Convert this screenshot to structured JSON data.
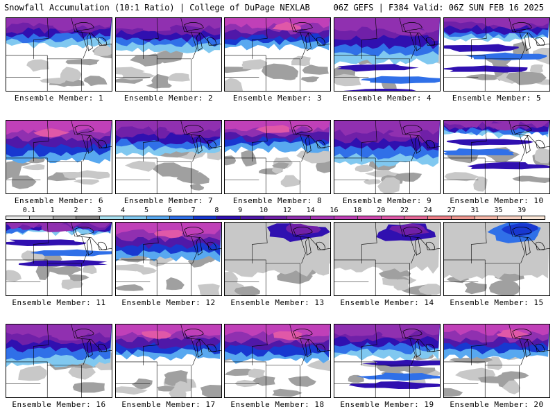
{
  "header": {
    "left": "Snowfall Accumulation (10:1 Ratio) | College of DuPage NEXLAB",
    "right": "06Z GEFS | F384 Valid: 06Z SUN FEB 16 2025"
  },
  "panels": [
    {
      "label": "Ensemble Member: 1",
      "snow_line": 0.62,
      "intensity": "moderate",
      "style": "snow-north"
    },
    {
      "label": "Ensemble Member: 2",
      "snow_line": 0.55,
      "intensity": "moderate",
      "style": "snow-north"
    },
    {
      "label": "Ensemble Member: 3",
      "snow_line": 0.6,
      "intensity": "heavy",
      "style": "snow-north"
    },
    {
      "label": "Ensemble Member: 4",
      "snow_line": 0.4,
      "intensity": "moderate",
      "style": "bands"
    },
    {
      "label": "Ensemble Member: 5",
      "snow_line": 0.7,
      "intensity": "moderate",
      "style": "bands"
    },
    {
      "label": "Ensemble Member: 6",
      "snow_line": 0.45,
      "intensity": "heavy",
      "style": "snow-north"
    },
    {
      "label": "Ensemble Member: 7",
      "snow_line": 0.55,
      "intensity": "moderate",
      "style": "snow-north"
    },
    {
      "label": "Ensemble Member: 8",
      "snow_line": 0.6,
      "intensity": "heavy",
      "style": "snow-north"
    },
    {
      "label": "Ensemble Member: 9",
      "snow_line": 0.4,
      "intensity": "moderate",
      "style": "snow-north"
    },
    {
      "label": "Ensemble Member: 10",
      "snow_line": 0.8,
      "intensity": "moderate",
      "style": "bands"
    },
    {
      "label": "Ensemble Member: 11",
      "snow_line": 0.85,
      "intensity": "moderate",
      "style": "bands"
    },
    {
      "label": "Ensemble Member: 12",
      "snow_line": 0.5,
      "intensity": "heavy",
      "style": "snow-north"
    },
    {
      "label": "Ensemble Member: 13",
      "snow_line": 0.3,
      "intensity": "moderate",
      "style": "sparse"
    },
    {
      "label": "Ensemble Member: 14",
      "snow_line": 0.35,
      "intensity": "moderate",
      "style": "sparse"
    },
    {
      "label": "Ensemble Member: 15",
      "snow_line": 0.25,
      "intensity": "light",
      "style": "sparse"
    },
    {
      "label": "Ensemble Member: 16",
      "snow_line": 0.45,
      "intensity": "moderate",
      "style": "snow-north"
    },
    {
      "label": "Ensemble Member: 17",
      "snow_line": 0.55,
      "intensity": "heavy",
      "style": "snow-north"
    },
    {
      "label": "Ensemble Member: 18",
      "snow_line": 0.5,
      "intensity": "heavy",
      "style": "snow-north"
    },
    {
      "label": "Ensemble Member: 19",
      "snow_line": 0.55,
      "intensity": "moderate",
      "style": "bands"
    },
    {
      "label": "Ensemble Member: 20",
      "snow_line": 0.55,
      "intensity": "heavy",
      "style": "snow-north"
    }
  ],
  "colorbar": {
    "labels": [
      "0.1",
      "1",
      "2",
      "3",
      "4",
      "5",
      "6",
      "7",
      "8",
      "9",
      "10",
      "12",
      "14",
      "16",
      "18",
      "20",
      "22",
      "24",
      "27",
      "31",
      "35",
      "39"
    ],
    "colors": [
      "#e8e8e8",
      "#c8c8c8",
      "#a8a8a8",
      "#888888",
      "#a8e0f0",
      "#80c8f0",
      "#58a8f0",
      "#3070e8",
      "#1838d0",
      "#3010b0",
      "#5018a8",
      "#7020a8",
      "#9030b0",
      "#a838b8",
      "#c040b8",
      "#d048b0",
      "#e058a8",
      "#e86898",
      "#f08088",
      "#f09890",
      "#f8b8a8",
      "#f8d0c0",
      "#fce8d8"
    ]
  }
}
